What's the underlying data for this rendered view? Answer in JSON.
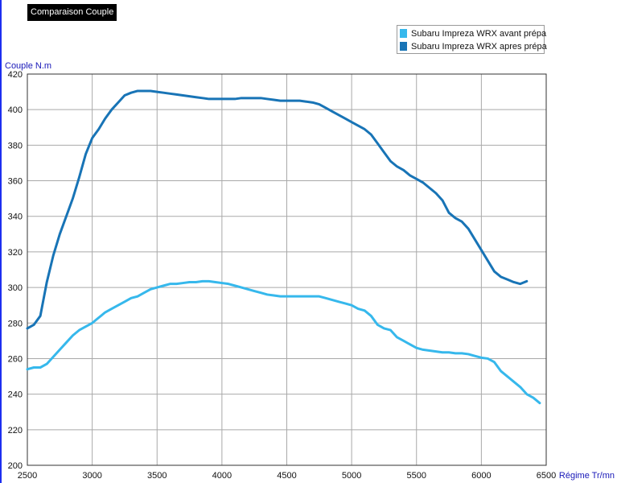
{
  "chart_data": {
    "type": "line",
    "title": "Comparaison Couple",
    "xlabel": "Régime Tr/mn",
    "ylabel": "Couple N.m",
    "xlim": [
      2500,
      6500
    ],
    "ylim": [
      200,
      420
    ],
    "x_ticks": [
      2500,
      3000,
      3500,
      4000,
      4500,
      5000,
      5500,
      6000,
      6500
    ],
    "y_ticks": [
      200,
      220,
      240,
      260,
      280,
      300,
      320,
      340,
      360,
      380,
      400,
      420
    ],
    "grid": true,
    "legend_position": "top-right",
    "series": [
      {
        "name": "Subaru Impreza WRX avant prépa",
        "color": "#36b8ec",
        "x": [
          2500,
          2550,
          2600,
          2650,
          2700,
          2750,
          2800,
          2850,
          2900,
          2950,
          3000,
          3050,
          3100,
          3150,
          3200,
          3250,
          3300,
          3350,
          3400,
          3450,
          3500,
          3550,
          3600,
          3650,
          3700,
          3750,
          3800,
          3850,
          3900,
          3950,
          4000,
          4050,
          4100,
          4150,
          4200,
          4250,
          4300,
          4350,
          4400,
          4450,
          4500,
          4550,
          4600,
          4650,
          4700,
          4750,
          4800,
          4850,
          4900,
          4950,
          5000,
          5050,
          5100,
          5150,
          5200,
          5250,
          5300,
          5350,
          5400,
          5450,
          5500,
          5550,
          5600,
          5650,
          5700,
          5750,
          5800,
          5850,
          5900,
          5950,
          6000,
          6050,
          6100,
          6150,
          6200,
          6250,
          6300,
          6350,
          6400,
          6450
        ],
        "y": [
          254,
          255,
          255,
          257,
          261,
          265,
          269,
          273,
          276,
          278,
          280,
          283,
          286,
          288,
          290,
          292,
          294,
          295,
          297,
          299,
          300,
          301,
          302,
          302,
          302.5,
          303,
          303,
          303.5,
          303.5,
          303,
          302.5,
          302,
          301,
          300,
          299,
          298,
          297,
          296,
          295.5,
          295,
          295,
          295,
          295,
          295,
          295,
          295,
          294,
          293,
          292,
          291,
          290,
          288,
          287,
          284,
          279,
          277,
          276,
          272,
          270,
          268,
          266,
          265,
          264.5,
          264,
          263.5,
          263.5,
          263,
          263,
          262.5,
          261.5,
          260.5,
          260,
          258,
          253,
          250,
          247,
          244,
          240,
          238,
          235
        ]
      },
      {
        "name": "Subaru Impreza WRX apres prépa",
        "color": "#1874b6",
        "x": [
          2500,
          2550,
          2600,
          2650,
          2700,
          2750,
          2800,
          2850,
          2900,
          2950,
          3000,
          3050,
          3100,
          3150,
          3200,
          3250,
          3300,
          3350,
          3400,
          3450,
          3500,
          3550,
          3600,
          3650,
          3700,
          3750,
          3800,
          3850,
          3900,
          3950,
          4000,
          4050,
          4100,
          4150,
          4200,
          4250,
          4300,
          4350,
          4400,
          4450,
          4500,
          4550,
          4600,
          4650,
          4700,
          4750,
          4800,
          4850,
          4900,
          4950,
          5000,
          5050,
          5100,
          5150,
          5200,
          5250,
          5300,
          5350,
          5400,
          5450,
          5500,
          5550,
          5600,
          5650,
          5700,
          5750,
          5800,
          5850,
          5900,
          5950,
          6000,
          6050,
          6100,
          6150,
          6200,
          6250,
          6300,
          6350
        ],
        "y": [
          277,
          279,
          284,
          303,
          318,
          330,
          340,
          350,
          362,
          375,
          384,
          389,
          395,
          400,
          404,
          408,
          409.5,
          410.5,
          410.5,
          410.5,
          410,
          409.5,
          409,
          408.5,
          408,
          407.5,
          407,
          406.5,
          406,
          406,
          406,
          406,
          406,
          406.5,
          406.5,
          406.5,
          406.5,
          406,
          405.5,
          405,
          405,
          405,
          405,
          404.5,
          404,
          403,
          401,
          399,
          397,
          395,
          393,
          391,
          389,
          386,
          381,
          376,
          371,
          368,
          366,
          363,
          361,
          359,
          356,
          353,
          349,
          342,
          339,
          337,
          333,
          327,
          321,
          315,
          309,
          306,
          304.5,
          303,
          302,
          303.5
        ]
      }
    ]
  }
}
